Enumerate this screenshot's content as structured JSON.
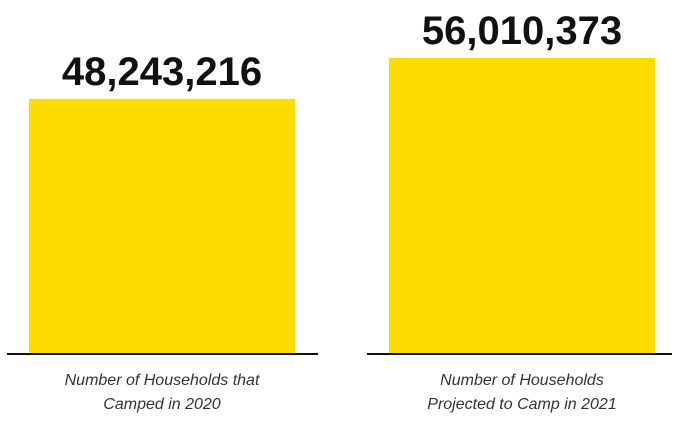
{
  "chart_data": {
    "type": "bar",
    "categories": [
      [
        "Number of Households that",
        "Camped in 2020"
      ],
      [
        "Number of Households",
        "Projected to Camp in 2021"
      ]
    ],
    "values": [
      48243216,
      56010373
    ],
    "value_labels": [
      "48,243,216",
      "56,010,373"
    ],
    "colors": {
      "bar": "#FFDC00",
      "baseline": "#111111",
      "value_text": "#111111",
      "category_text": "#333333"
    },
    "grid": false,
    "legend": "none"
  }
}
